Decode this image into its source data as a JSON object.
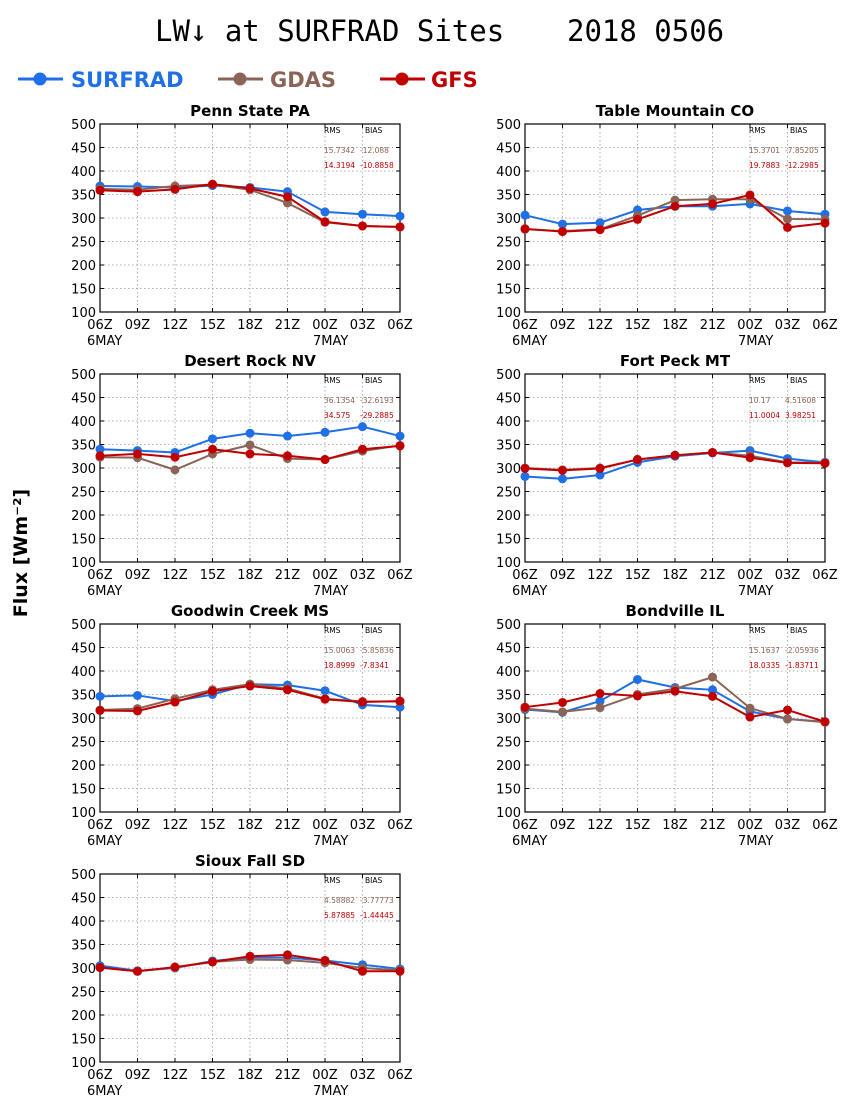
{
  "figure": {
    "title": "LW↓ at SURFRAD Sites",
    "date": "2018 0506",
    "ylabel": "Flux [Wm⁻²]"
  },
  "legend": [
    {
      "name": "SURFRAD",
      "color": "#1f6fe5"
    },
    {
      "name": "GDAS",
      "color": "#8c6457"
    },
    {
      "name": "GFS",
      "color": "#c00000"
    }
  ],
  "stat_headers": {
    "rms": "RMS",
    "bias": "BIAS"
  },
  "chart_data": [
    {
      "type": "line",
      "title": "Penn State PA",
      "categories": [
        "06Z",
        "09Z",
        "12Z",
        "15Z",
        "18Z",
        "21Z",
        "00Z",
        "03Z",
        "06Z"
      ],
      "date_labels": {
        "start": "6MAY",
        "mid": "7MAY"
      },
      "ylim": [
        100,
        500
      ],
      "yticks": [
        100,
        150,
        200,
        250,
        300,
        350,
        400,
        450,
        500
      ],
      "grid": true,
      "series": [
        {
          "name": "SURFRAD",
          "values": [
            368,
            367,
            365,
            369,
            365,
            356,
            313,
            308,
            304
          ]
        },
        {
          "name": "GDAS",
          "values": [
            362,
            360,
            368,
            371,
            360,
            332,
            291,
            283,
            281
          ]
        },
        {
          "name": "GFS",
          "values": [
            359,
            356,
            361,
            372,
            363,
            345,
            292,
            283,
            281
          ]
        }
      ],
      "stats": {
        "GDAS": {
          "rms": "15.7342",
          "bias": "-12.088"
        },
        "GFS": {
          "rms": "14.3194",
          "bias": "-10.8858"
        }
      }
    },
    {
      "type": "line",
      "title": "Table Mountain CO",
      "categories": [
        "06Z",
        "09Z",
        "12Z",
        "15Z",
        "18Z",
        "21Z",
        "00Z",
        "03Z",
        "06Z"
      ],
      "date_labels": {
        "start": "6MAY",
        "mid": "7MAY"
      },
      "ylim": [
        100,
        500
      ],
      "yticks": [
        100,
        150,
        200,
        250,
        300,
        350,
        400,
        450,
        500
      ],
      "grid": true,
      "series": [
        {
          "name": "SURFRAD",
          "values": [
            306,
            287,
            290,
            317,
            325,
            325,
            330,
            315,
            308
          ]
        },
        {
          "name": "GDAS",
          "values": [
            276,
            272,
            276,
            305,
            338,
            340,
            340,
            298,
            297
          ]
        },
        {
          "name": "GFS",
          "values": [
            277,
            271,
            275,
            297,
            325,
            330,
            349,
            280,
            289
          ]
        }
      ],
      "stats": {
        "GDAS": {
          "rms": "15.3701",
          "bias": "-7.85205"
        },
        "GFS": {
          "rms": "19.7883",
          "bias": "-12.2985"
        }
      }
    },
    {
      "type": "line",
      "title": "Desert Rock NV",
      "categories": [
        "06Z",
        "09Z",
        "12Z",
        "15Z",
        "18Z",
        "21Z",
        "00Z",
        "03Z",
        "06Z"
      ],
      "date_labels": {
        "start": "6MAY",
        "mid": "7MAY"
      },
      "ylim": [
        100,
        500
      ],
      "yticks": [
        100,
        150,
        200,
        250,
        300,
        350,
        400,
        450,
        500
      ],
      "grid": true,
      "series": [
        {
          "name": "SURFRAD",
          "values": [
            340,
            337,
            333,
            362,
            374,
            368,
            376,
            388,
            368
          ]
        },
        {
          "name": "GDAS",
          "values": [
            323,
            322,
            296,
            330,
            349,
            320,
            318,
            336,
            348
          ]
        },
        {
          "name": "GFS",
          "values": [
            326,
            330,
            323,
            340,
            330,
            326,
            318,
            340,
            347
          ]
        }
      ],
      "stats": {
        "GDAS": {
          "rms": "36.1354",
          "bias": "-32.6193"
        },
        "GFS": {
          "rms": "34.575",
          "bias": "-29.2885"
        }
      }
    },
    {
      "type": "line",
      "title": "Fort Peck MT",
      "categories": [
        "06Z",
        "09Z",
        "12Z",
        "15Z",
        "18Z",
        "21Z",
        "00Z",
        "03Z",
        "06Z"
      ],
      "date_labels": {
        "start": "6MAY",
        "mid": "7MAY"
      },
      "ylim": [
        100,
        500
      ],
      "yticks": [
        100,
        150,
        200,
        250,
        300,
        350,
        400,
        450,
        500
      ],
      "grid": true,
      "series": [
        {
          "name": "SURFRAD",
          "values": [
            282,
            277,
            285,
            312,
            325,
            332,
            337,
            320,
            312
          ]
        },
        {
          "name": "GDAS",
          "values": [
            300,
            296,
            300,
            318,
            327,
            333,
            326,
            312,
            311
          ]
        },
        {
          "name": "GFS",
          "values": [
            299,
            295,
            299,
            318,
            327,
            333,
            322,
            311,
            310
          ]
        }
      ],
      "stats": {
        "GDAS": {
          "rms": "10.17",
          "bias": "4.51608"
        },
        "GFS": {
          "rms": "11.0004",
          "bias": "3.98251"
        }
      }
    },
    {
      "type": "line",
      "title": "Goodwin Creek MS",
      "categories": [
        "06Z",
        "09Z",
        "12Z",
        "15Z",
        "18Z",
        "21Z",
        "00Z",
        "03Z",
        "06Z"
      ],
      "date_labels": {
        "start": "6MAY",
        "mid": "7MAY"
      },
      "ylim": [
        100,
        500
      ],
      "yticks": [
        100,
        150,
        200,
        250,
        300,
        350,
        400,
        450,
        500
      ],
      "grid": true,
      "series": [
        {
          "name": "SURFRAD",
          "values": [
            346,
            348,
            336,
            350,
            372,
            370,
            358,
            328,
            323
          ]
        },
        {
          "name": "GDAS",
          "values": [
            317,
            320,
            341,
            360,
            372,
            363,
            341,
            335,
            335
          ]
        },
        {
          "name": "GFS",
          "values": [
            316,
            315,
            334,
            357,
            368,
            360,
            340,
            334,
            336
          ]
        }
      ],
      "stats": {
        "GDAS": {
          "rms": "15.0063",
          "bias": "-5.85836"
        },
        "GFS": {
          "rms": "18.8999",
          "bias": "-7.8341"
        }
      }
    },
    {
      "type": "line",
      "title": "Bondville IL",
      "categories": [
        "06Z",
        "09Z",
        "12Z",
        "15Z",
        "18Z",
        "21Z",
        "00Z",
        "03Z",
        "06Z"
      ],
      "date_labels": {
        "start": "6MAY",
        "mid": "7MAY"
      },
      "ylim": [
        100,
        500
      ],
      "yticks": [
        100,
        150,
        200,
        250,
        300,
        350,
        400,
        450,
        500
      ],
      "grid": true,
      "series": [
        {
          "name": "SURFRAD",
          "values": [
            318,
            312,
            336,
            382,
            365,
            360,
            314,
            298,
            292
          ]
        },
        {
          "name": "GDAS",
          "values": [
            320,
            313,
            322,
            350,
            362,
            387,
            321,
            298,
            291
          ]
        },
        {
          "name": "GFS",
          "values": [
            323,
            333,
            352,
            347,
            357,
            346,
            302,
            317,
            292
          ]
        }
      ],
      "stats": {
        "GDAS": {
          "rms": "15.1637",
          "bias": "-2.05936"
        },
        "GFS": {
          "rms": "18.0335",
          "bias": "-1.83711"
        }
      }
    },
    {
      "type": "line",
      "title": "Sioux Fall SD",
      "categories": [
        "06Z",
        "09Z",
        "12Z",
        "15Z",
        "18Z",
        "21Z",
        "00Z",
        "03Z",
        "06Z"
      ],
      "date_labels": {
        "start": "6MAY",
        "mid": "7MAY"
      },
      "ylim": [
        100,
        500
      ],
      "yticks": [
        100,
        150,
        200,
        250,
        300,
        350,
        400,
        450,
        500
      ],
      "grid": true,
      "series": [
        {
          "name": "SURFRAD",
          "values": [
            305,
            294,
            300,
            315,
            322,
            322,
            316,
            307,
            298
          ]
        },
        {
          "name": "GDAS",
          "values": [
            301,
            293,
            301,
            313,
            318,
            317,
            311,
            300,
            295
          ]
        },
        {
          "name": "GFS",
          "values": [
            301,
            293,
            302,
            313,
            325,
            328,
            316,
            293,
            293
          ]
        }
      ],
      "stats": {
        "GDAS": {
          "rms": "4.58882",
          "bias": "-3.77773"
        },
        "GFS": {
          "rms": "5.87885",
          "bias": "-1.44445"
        }
      }
    }
  ]
}
